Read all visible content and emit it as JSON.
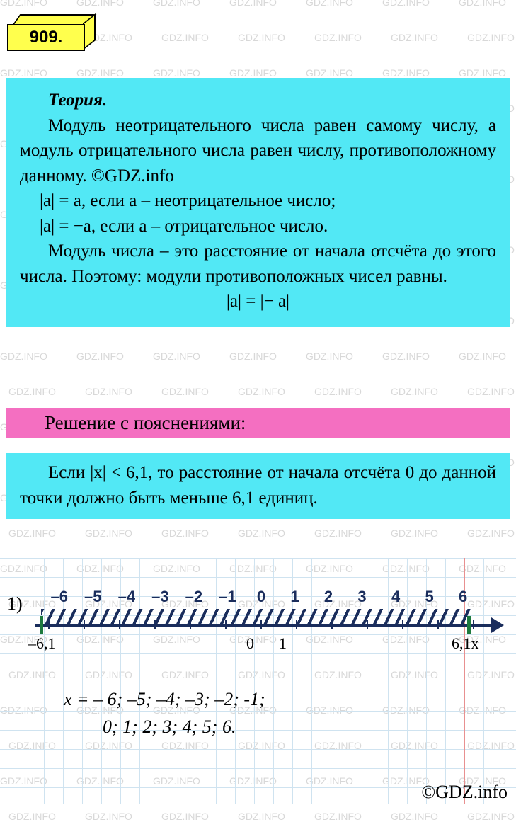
{
  "watermark_text": "GDZ.INFO",
  "watermark_color": "#d8d8d8",
  "problem_number": "909.",
  "badge_color": "#ffff4d",
  "theory": {
    "bg_color": "#52e8f5",
    "title": "Теория.",
    "para1": "Модуль неотрицательного числа равен самому числу, а модуль отрицательного числа равен числу, противоположному данному. ©GDZ.info",
    "formula1_pre": "|a| = a",
    "formula1_post": ", если  a  – неотрицательное число;",
    "formula2_pre": "|a| = −a",
    "formula2_post": ", если  a  – отрицательное число.",
    "para2": "Модуль числа – это расстояние от начала отсчёта до этого числа. Поэтому: модули противоположных чисел равны.",
    "formula3": "|a| = |− a|",
    "fontsize": 25
  },
  "solution_header": {
    "text": "Решение с пояснениями:",
    "bg_color": "#f46fc1",
    "fontsize": 27
  },
  "solution": {
    "bg_color": "#52e8f5",
    "text_pre": "Если  |x| < 6,1,  то расстояние от начала отсчёта 0 до данной точки должно быть меньше 6,1 единиц.",
    "fontsize": 25
  },
  "numberline": {
    "item_label": "1)",
    "tick_values": [
      "–6",
      "–5",
      "–4",
      "–3",
      "–2",
      "–1",
      "0",
      "1",
      "2",
      "3",
      "4",
      "5",
      "6"
    ],
    "left_endpoint_label": "–6,1",
    "right_endpoint_label": "6,1x",
    "zero_label": "0",
    "one_label": "1",
    "axis_color": "#1a2d5c",
    "hatch_color": "#1a2d5c",
    "endpoint_color": "#1d7a3e",
    "grid_color": "#cfe3f0",
    "redline_color": "#e89090",
    "tick_start": -6,
    "tick_end": 6,
    "tick_count": 13,
    "label_fontsize": 22
  },
  "answer": {
    "line1": "x = – 6;  –5;  –4;  –3;  –2;  -1;",
    "line2": "0;  1;  2;  3;  4;  5;  6.",
    "fontsize": 26
  },
  "copyright": "©GDZ.info"
}
